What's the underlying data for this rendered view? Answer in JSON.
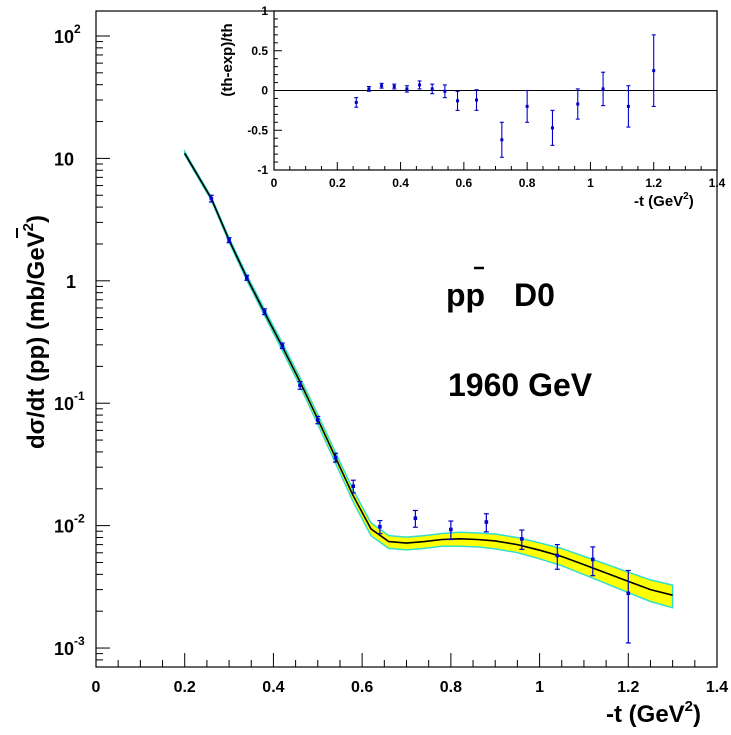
{
  "chart_data": [
    {
      "type": "line",
      "title": "",
      "annotations": {
        "reaction": "pp",
        "experiment": "D0",
        "energy": "1960 GeV"
      },
      "xlabel": "-t (GeV",
      "xlabel_sup": "2",
      "xlabel_close": ")",
      "ylabel": "dσ/dt (pp) (mb/GeV",
      "ylabel_sup": "2",
      "ylabel_close": ")",
      "xlim": [
        0,
        1.4
      ],
      "ylim": [
        0.0007,
        160
      ],
      "yscale": "log",
      "x_ticks": [
        {
          "v": 0,
          "label": "0"
        },
        {
          "v": 0.2,
          "label": "0.2"
        },
        {
          "v": 0.4,
          "label": "0.4"
        },
        {
          "v": 0.6,
          "label": "0.6"
        },
        {
          "v": 0.8,
          "label": "0.8"
        },
        {
          "v": 1.0,
          "label": "1"
        },
        {
          "v": 1.2,
          "label": "1.2"
        },
        {
          "v": 1.4,
          "label": "1.4"
        }
      ],
      "y_ticks": [
        {
          "v": 100,
          "base": "10",
          "exp": "2"
        },
        {
          "v": 10,
          "base": "10",
          "exp": ""
        },
        {
          "v": 1,
          "base": "1",
          "exp": ""
        },
        {
          "v": 0.1,
          "base": "10",
          "exp": "-1"
        },
        {
          "v": 0.01,
          "base": "10",
          "exp": "-2"
        },
        {
          "v": 0.001,
          "base": "10",
          "exp": "-3"
        }
      ],
      "series": [
        {
          "kind": "band",
          "fill": "#ffff00",
          "edge": "#33ddcc",
          "x": [
            0.2,
            0.26,
            0.3,
            0.34,
            0.38,
            0.42,
            0.46,
            0.5,
            0.54,
            0.58,
            0.62,
            0.66,
            0.7,
            0.74,
            0.78,
            0.82,
            0.86,
            0.9,
            0.95,
            1.0,
            1.05,
            1.1,
            1.15,
            1.2,
            1.25,
            1.3
          ],
          "y": [
            11,
            4.7,
            2.15,
            1.06,
            0.55,
            0.29,
            0.15,
            0.074,
            0.036,
            0.0175,
            0.0094,
            0.0074,
            0.0072,
            0.0074,
            0.0077,
            0.0078,
            0.0077,
            0.0075,
            0.007,
            0.0063,
            0.0056,
            0.0048,
            0.0041,
            0.0035,
            0.003,
            0.0027
          ],
          "band_rel_width": [
            0.03,
            0.03,
            0.04,
            0.05,
            0.06,
            0.07,
            0.08,
            0.09,
            0.1,
            0.11,
            0.12,
            0.12,
            0.12,
            0.12,
            0.12,
            0.13,
            0.13,
            0.14,
            0.14,
            0.15,
            0.16,
            0.17,
            0.18,
            0.19,
            0.2,
            0.21
          ]
        },
        {
          "kind": "points",
          "color": "#0000cc",
          "x": [
            0.26,
            0.3,
            0.34,
            0.38,
            0.42,
            0.46,
            0.5,
            0.54,
            0.58,
            0.64,
            0.72,
            0.8,
            0.88,
            0.96,
            1.04,
            1.12,
            1.2
          ],
          "y": [
            4.7,
            2.15,
            1.06,
            0.56,
            0.295,
            0.14,
            0.073,
            0.036,
            0.021,
            0.0098,
            0.0115,
            0.0093,
            0.0107,
            0.0078,
            0.0057,
            0.0053,
            0.0028
          ],
          "err_lo": [
            0.3,
            0.1,
            0.05,
            0.03,
            0.015,
            0.01,
            0.005,
            0.003,
            0.0025,
            0.0012,
            0.0018,
            0.0016,
            0.0018,
            0.0014,
            0.0013,
            0.0014,
            0.0017
          ],
          "err_hi": [
            0.3,
            0.1,
            0.05,
            0.03,
            0.015,
            0.01,
            0.005,
            0.003,
            0.0025,
            0.0012,
            0.0018,
            0.0016,
            0.0018,
            0.0014,
            0.0013,
            0.0014,
            0.0015
          ]
        }
      ]
    },
    {
      "type": "scatter",
      "title": "",
      "xlabel": "-t (GeV",
      "xlabel_sup": "2",
      "xlabel_close": ")",
      "ylabel": "(th-exp)/th",
      "xlim": [
        0,
        1.4
      ],
      "ylim": [
        -1,
        1
      ],
      "zero_line": true,
      "x_ticks": [
        {
          "v": 0,
          "label": "0"
        },
        {
          "v": 0.2,
          "label": "0.2"
        },
        {
          "v": 0.4,
          "label": "0.4"
        },
        {
          "v": 0.6,
          "label": "0.6"
        },
        {
          "v": 0.8,
          "label": "0.8"
        },
        {
          "v": 1.0,
          "label": "1"
        },
        {
          "v": 1.2,
          "label": "1.2"
        },
        {
          "v": 1.4,
          "label": "1.4"
        }
      ],
      "y_ticks": [
        {
          "v": 1,
          "label": "1"
        },
        {
          "v": 0.5,
          "label": "0.5"
        },
        {
          "v": 0,
          "label": "0"
        },
        {
          "v": -0.5,
          "label": "-0.5"
        },
        {
          "v": -1,
          "label": "-1"
        }
      ],
      "series": [
        {
          "kind": "points",
          "color": "#0000cc",
          "x": [
            0.26,
            0.3,
            0.34,
            0.38,
            0.42,
            0.46,
            0.5,
            0.54,
            0.58,
            0.64,
            0.72,
            0.8,
            0.88,
            0.96,
            1.04,
            1.12,
            1.2
          ],
          "y": [
            -0.15,
            0.02,
            0.06,
            0.05,
            0.02,
            0.07,
            0.02,
            -0.01,
            -0.13,
            -0.12,
            -0.62,
            -0.2,
            -0.47,
            -0.17,
            0.02,
            -0.2,
            0.25
          ],
          "err": [
            0.06,
            0.03,
            0.03,
            0.03,
            0.04,
            0.05,
            0.06,
            0.08,
            0.12,
            0.13,
            0.22,
            0.2,
            0.22,
            0.19,
            0.21,
            0.26,
            0.45
          ]
        }
      ]
    }
  ]
}
